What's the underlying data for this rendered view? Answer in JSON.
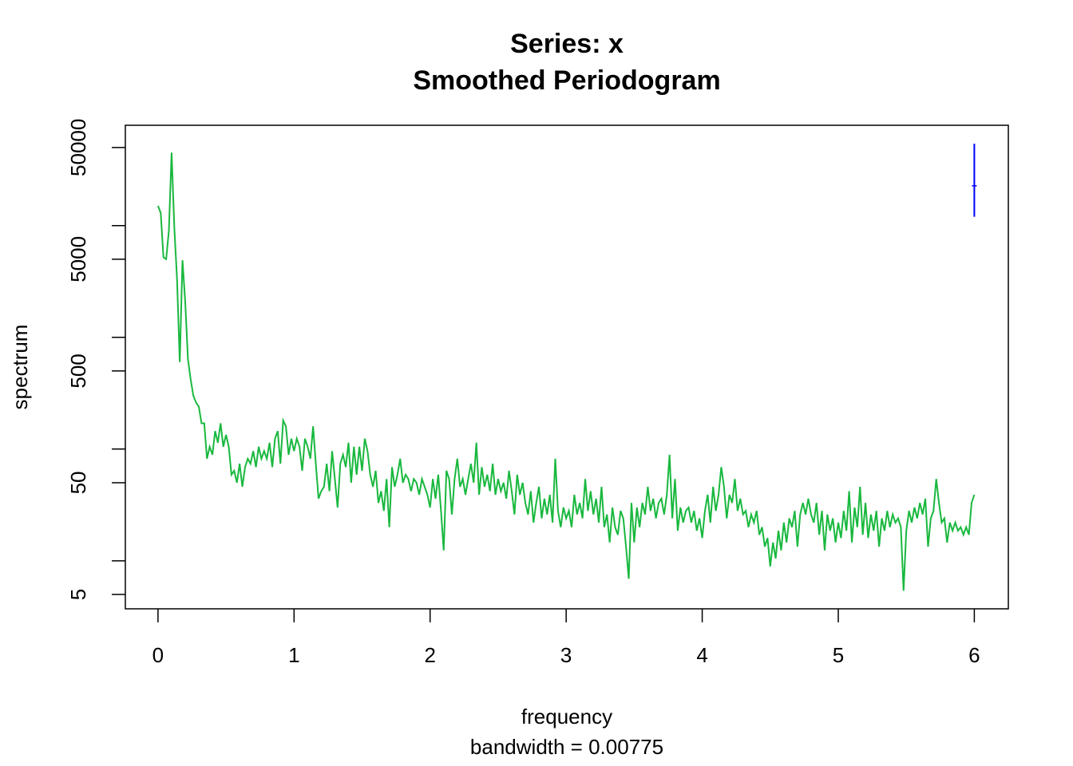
{
  "chart_data": {
    "type": "line",
    "title": "Series: x",
    "subtitle": "Smoothed Periodogram",
    "xlabel": "frequency",
    "xsublabel": "bandwidth = 0.00775",
    "ylabel": "spectrum",
    "log_y": true,
    "color": "#19b83e",
    "xlim": [
      -0.24,
      6.25
    ],
    "xticks": [
      0,
      1,
      2,
      3,
      4,
      5,
      6
    ],
    "ylim": [
      3.72,
      79000
    ],
    "yticks": [
      5,
      50,
      500,
      5000,
      50000
    ],
    "yticks_minor": [
      10,
      100,
      1000,
      10000
    ],
    "ci_bar": {
      "x": 6,
      "low": 12000,
      "center": 22700,
      "high": 54000,
      "color": "#0000ff"
    },
    "x": [
      0,
      0.02,
      0.04,
      0.06,
      0.08,
      0.1,
      0.12,
      0.14,
      0.16,
      0.18,
      0.2,
      0.22,
      0.24,
      0.26,
      0.28,
      0.3,
      0.32,
      0.34,
      0.36,
      0.38,
      0.4,
      0.42,
      0.44,
      0.46,
      0.48,
      0.5,
      0.52,
      0.54,
      0.56,
      0.58,
      0.6,
      0.62,
      0.64,
      0.66,
      0.68,
      0.7,
      0.72,
      0.74,
      0.76,
      0.78,
      0.8,
      0.82,
      0.84,
      0.86,
      0.88,
      0.9,
      0.92,
      0.94,
      0.96,
      0.98,
      1,
      1.02,
      1.04,
      1.06,
      1.08,
      1.1,
      1.12,
      1.14,
      1.16,
      1.18,
      1.2,
      1.22,
      1.24,
      1.26,
      1.28,
      1.3,
      1.32,
      1.34,
      1.36,
      1.38,
      1.4,
      1.42,
      1.44,
      1.46,
      1.48,
      1.5,
      1.52,
      1.54,
      1.56,
      1.58,
      1.6,
      1.62,
      1.64,
      1.66,
      1.68,
      1.7,
      1.72,
      1.74,
      1.76,
      1.78,
      1.8,
      1.82,
      1.84,
      1.86,
      1.88,
      1.9,
      1.92,
      1.94,
      1.96,
      1.98,
      2,
      2.02,
      2.04,
      2.06,
      2.08,
      2.1,
      2.12,
      2.14,
      2.16,
      2.18,
      2.2,
      2.22,
      2.24,
      2.26,
      2.28,
      2.3,
      2.32,
      2.34,
      2.36,
      2.38,
      2.4,
      2.42,
      2.44,
      2.46,
      2.48,
      2.5,
      2.52,
      2.54,
      2.56,
      2.58,
      2.6,
      2.62,
      2.64,
      2.66,
      2.68,
      2.7,
      2.72,
      2.74,
      2.76,
      2.78,
      2.8,
      2.82,
      2.84,
      2.86,
      2.88,
      2.9,
      2.92,
      2.94,
      2.96,
      2.98,
      3,
      3.02,
      3.04,
      3.06,
      3.08,
      3.1,
      3.12,
      3.14,
      3.16,
      3.18,
      3.2,
      3.22,
      3.24,
      3.26,
      3.28,
      3.3,
      3.32,
      3.34,
      3.36,
      3.38,
      3.4,
      3.42,
      3.44,
      3.46,
      3.48,
      3.5,
      3.52,
      3.54,
      3.56,
      3.58,
      3.6,
      3.62,
      3.64,
      3.66,
      3.68,
      3.7,
      3.72,
      3.74,
      3.76,
      3.78,
      3.8,
      3.82,
      3.84,
      3.86,
      3.88,
      3.9,
      3.92,
      3.94,
      3.96,
      3.98,
      4,
      4.02,
      4.04,
      4.06,
      4.08,
      4.1,
      4.12,
      4.14,
      4.16,
      4.18,
      4.2,
      4.22,
      4.24,
      4.26,
      4.28,
      4.3,
      4.32,
      4.34,
      4.36,
      4.38,
      4.4,
      4.42,
      4.44,
      4.46,
      4.48,
      4.5,
      4.52,
      4.54,
      4.56,
      4.58,
      4.6,
      4.62,
      4.64,
      4.66,
      4.68,
      4.7,
      4.72,
      4.74,
      4.76,
      4.78,
      4.8,
      4.82,
      4.84,
      4.86,
      4.88,
      4.9,
      4.92,
      4.94,
      4.96,
      4.98,
      5,
      5.02,
      5.04,
      5.06,
      5.08,
      5.1,
      5.12,
      5.14,
      5.16,
      5.18,
      5.2,
      5.22,
      5.24,
      5.26,
      5.28,
      5.3,
      5.32,
      5.34,
      5.36,
      5.38,
      5.4,
      5.42,
      5.44,
      5.46,
      5.48,
      5.5,
      5.52,
      5.54,
      5.56,
      5.58,
      5.6,
      5.62,
      5.64,
      5.66,
      5.68,
      5.7,
      5.72,
      5.74,
      5.76,
      5.78,
      5.8,
      5.82,
      5.84,
      5.86,
      5.88,
      5.9,
      5.92,
      5.94,
      5.96,
      5.98,
      6
    ],
    "values": [
      15000,
      13000,
      5200,
      5000,
      9000,
      45000,
      9600,
      3300,
      600,
      4900,
      2100,
      640,
      420,
      300,
      260,
      240,
      170,
      170,
      82,
      105,
      89,
      145,
      114,
      170,
      105,
      134,
      105,
      59,
      64,
      50,
      74,
      46,
      69,
      82,
      74,
      96,
      69,
      105,
      82,
      96,
      82,
      114,
      69,
      124,
      145,
      74,
      180,
      160,
      89,
      124,
      96,
      124,
      105,
      64,
      124,
      105,
      82,
      160,
      74,
      36,
      42,
      46,
      74,
      42,
      96,
      54,
      30,
      74,
      89,
      69,
      114,
      50,
      105,
      59,
      105,
      64,
      124,
      96,
      59,
      46,
      64,
      33,
      42,
      28,
      54,
      20,
      69,
      46,
      59,
      82,
      50,
      59,
      54,
      42,
      54,
      50,
      39,
      54,
      46,
      39,
      30,
      54,
      36,
      59,
      28,
      12.4,
      64,
      54,
      26,
      54,
      82,
      46,
      54,
      39,
      54,
      74,
      50,
      114,
      39,
      69,
      46,
      59,
      42,
      74,
      39,
      54,
      42,
      50,
      36,
      64,
      42,
      26,
      59,
      39,
      50,
      33,
      26,
      42,
      22,
      33,
      46,
      24,
      36,
      26,
      39,
      22,
      82,
      28,
      20,
      30,
      24,
      28,
      20,
      39,
      26,
      33,
      24,
      54,
      28,
      42,
      26,
      36,
      22,
      46,
      20,
      26,
      14.6,
      30,
      20,
      17.1,
      28,
      24,
      13.4,
      6.9,
      33,
      14.6,
      30,
      20,
      33,
      26,
      46,
      28,
      36,
      24,
      33,
      36,
      26,
      39,
      89,
      24,
      54,
      18.6,
      30,
      22,
      28,
      30,
      22,
      28,
      18.6,
      24,
      16,
      28,
      39,
      22,
      46,
      28,
      39,
      69,
      46,
      24,
      39,
      33,
      54,
      28,
      36,
      26,
      28,
      20,
      26,
      22,
      28,
      17.1,
      20,
      13.4,
      16,
      8.9,
      14.6,
      10.5,
      18.6,
      12.4,
      22,
      14.6,
      24,
      20,
      28,
      13.4,
      26,
      33,
      26,
      36,
      26,
      22,
      33,
      17.1,
      28,
      12.4,
      26,
      18.6,
      24,
      14.6,
      22,
      16,
      28,
      18.6,
      42,
      14.6,
      30,
      20,
      46,
      17.1,
      33,
      16,
      26,
      18.6,
      28,
      13.4,
      24,
      18.6,
      28,
      20,
      26,
      22,
      24,
      20,
      5.4,
      18.6,
      28,
      22,
      30,
      24,
      33,
      26,
      36,
      13.4,
      24,
      28,
      54,
      33,
      22,
      24,
      14.6,
      22,
      18.6,
      22,
      18.6,
      20,
      17.1,
      20,
      17.1,
      33,
      39
    ]
  }
}
